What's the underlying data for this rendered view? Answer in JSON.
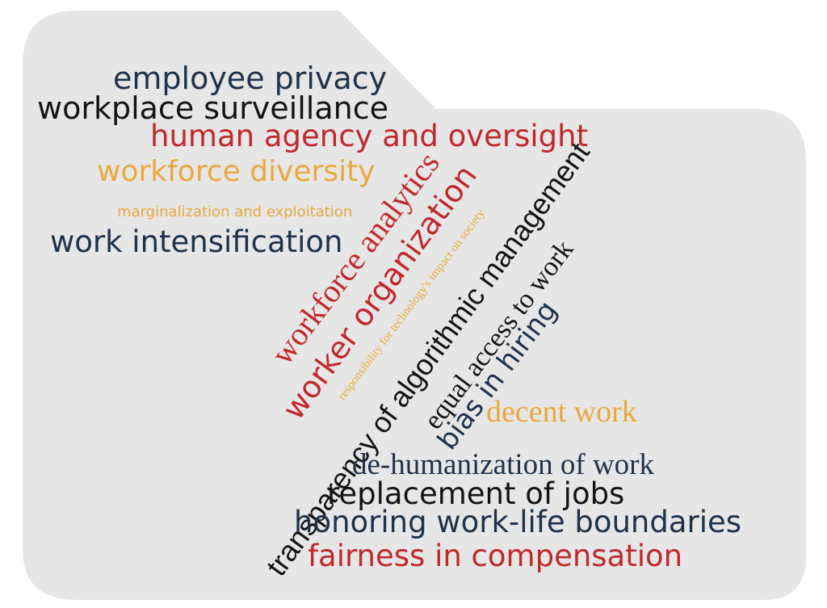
{
  "colors": {
    "background": "#e6e6e6",
    "navy": "#1f324a",
    "black": "#141414",
    "red": "#c1282c",
    "orange": "#e8a83c"
  },
  "words": {
    "employee_privacy": "employee privacy",
    "workplace_surveillance": "workplace surveillance",
    "human_agency": "human agency and oversight",
    "workforce_diversity": "workforce diversity",
    "marginalization": "marginalization and exploitation",
    "work_intensification": "work intensification",
    "workforce_analytics": "workforce analytics",
    "worker_organization": "worker organization",
    "responsibility": "responsibility for technology's impact on society",
    "transparency": "transparency of algorithmic management",
    "equal_access": "equal access to work",
    "bias_in_hiring": "bias in hiring",
    "decent_work": "decent work",
    "dehumanization": "de-humanization of work",
    "replacement_of_jobs": "replacement of jobs",
    "work_life": "honoring work-life boundaries",
    "fairness": "fairness in compensation"
  }
}
